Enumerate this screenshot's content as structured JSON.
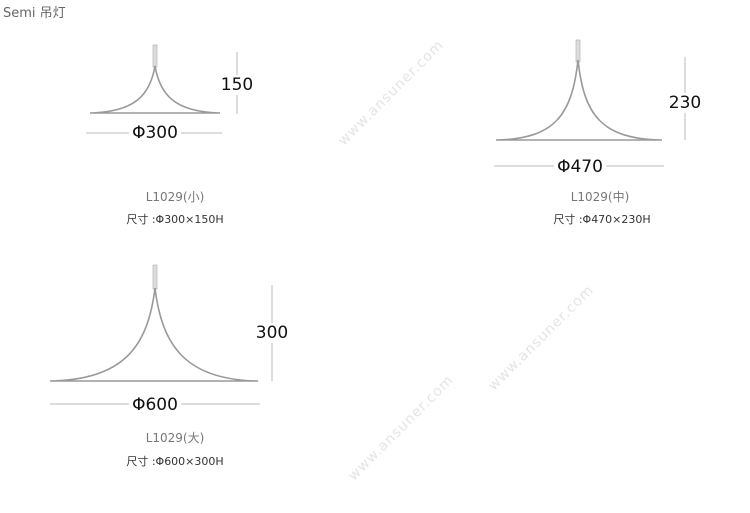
{
  "title": "Semi 吊灯",
  "watermark": "www.ansuner.com",
  "lamps": [
    {
      "diameter": "Φ300",
      "height": "150",
      "model": "L1029(小)",
      "size": "尺寸 :Φ300×150H"
    },
    {
      "diameter": "Φ470",
      "height": "230",
      "model": "L1029(中)",
      "size": "尺寸 :Φ470×230H"
    },
    {
      "diameter": "Φ600",
      "height": "300",
      "model": "L1029(大)",
      "size": "尺寸 :Φ600×300H"
    }
  ],
  "colors": {
    "shade": "#9a9a9a",
    "dimension_line": "#bbbbbb",
    "text": "#111111"
  }
}
